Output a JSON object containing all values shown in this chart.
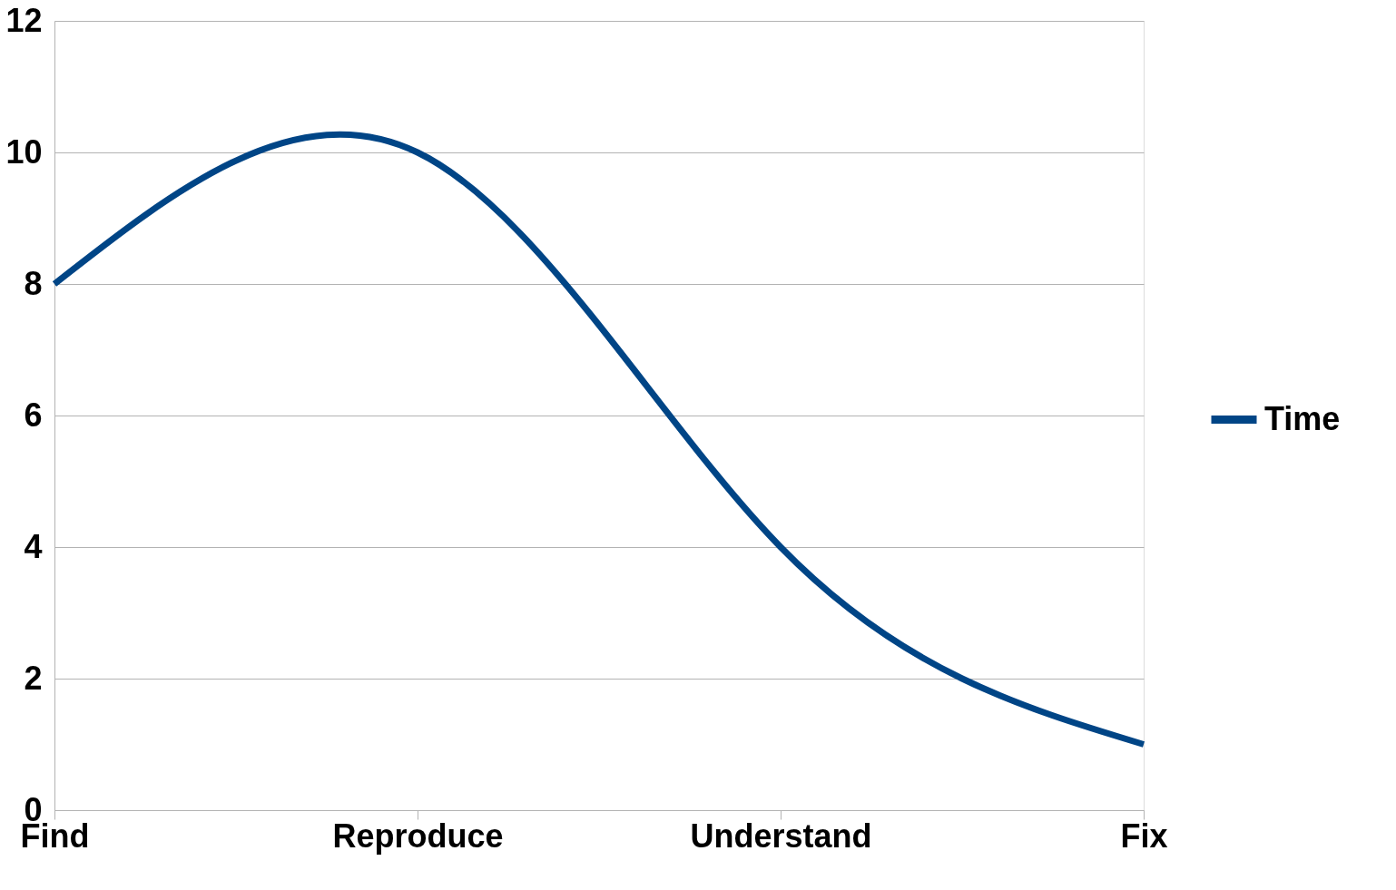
{
  "chart_data": {
    "type": "line",
    "categories": [
      "Find",
      "Reproduce",
      "Understand",
      "Fix"
    ],
    "series": [
      {
        "name": "Time",
        "color": "#004586",
        "values": [
          8,
          10,
          4,
          1
        ]
      }
    ],
    "ylim": [
      0,
      12
    ],
    "yticks": [
      0,
      2,
      4,
      6,
      8,
      10,
      12
    ],
    "grid": "y",
    "legend": "right",
    "marker": "none",
    "line_style": "solid"
  }
}
